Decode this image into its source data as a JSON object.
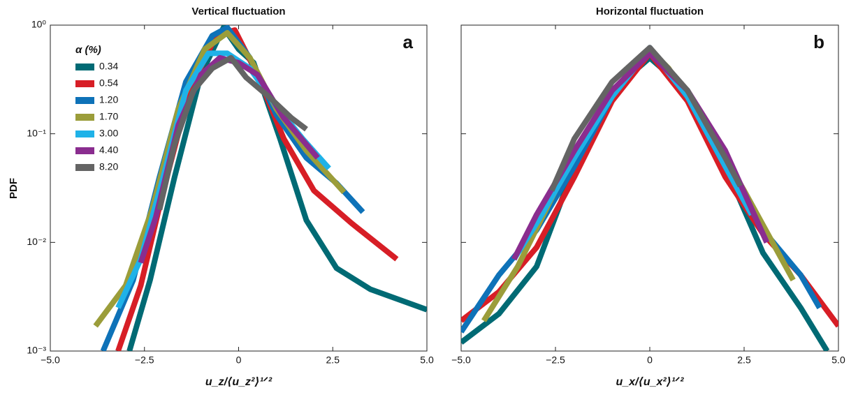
{
  "chart_data": [
    {
      "type": "line",
      "title": "Vertical fluctuation",
      "x_label": "u_z/⟨u_z²⟩¹ᐟ²",
      "y_label": "PDF",
      "annotation": "a",
      "ylog": true,
      "legend": true,
      "legend_title": "α (%)",
      "legend_position": "upper left",
      "xlim": [
        -5,
        5
      ],
      "xticks": [
        {
          "value": -5,
          "label": "−5.0"
        },
        {
          "value": -2.5,
          "label": "−2.5"
        },
        0,
        {
          "value": 2.5,
          "label": "2.5"
        },
        {
          "value": 5,
          "label": "5.0"
        }
      ],
      "ylim": [
        0.001,
        1
      ],
      "yticks": [
        {
          "value": 0.001,
          "label": "10⁻³"
        },
        {
          "value": 0.01,
          "label": "10⁻²"
        },
        {
          "value": 0.1,
          "label": "10⁻¹"
        },
        {
          "value": 1,
          "label": "10⁰"
        }
      ],
      "series": [
        {
          "name": "0.34",
          "color": "#006a74",
          "x": [
            -2.9,
            -2.35,
            -1.7,
            -1,
            -0.4,
            0,
            0.4,
            1.1,
            1.8,
            2.6,
            3.5,
            5.0
          ],
          "values": [
            0.001,
            0.0045,
            0.04,
            0.35,
            0.95,
            0.6,
            0.45,
            0.09,
            0.016,
            0.0058,
            0.0037,
            0.0024
          ]
        },
        {
          "name": "0.54",
          "color": "#d71e26",
          "x": [
            -3.2,
            -2.6,
            -2,
            -1.3,
            -0.6,
            -0.1,
            0.5,
            1.2,
            2,
            3,
            4.2
          ],
          "values": [
            0.001,
            0.004,
            0.03,
            0.25,
            0.8,
            0.9,
            0.35,
            0.09,
            0.03,
            0.015,
            0.007
          ]
        },
        {
          "name": "1.20",
          "color": "#0e72b8",
          "x": [
            -3.6,
            -2.8,
            -2.1,
            -1.4,
            -0.7,
            -0.3,
            0.3,
            1,
            1.8,
            2.6,
            3.3
          ],
          "values": [
            0.001,
            0.0045,
            0.04,
            0.3,
            0.8,
            0.95,
            0.5,
            0.15,
            0.06,
            0.035,
            0.019
          ]
        },
        {
          "name": "1.70",
          "color": "#9b9d3a",
          "x": [
            -3.8,
            -3,
            -2.3,
            -1.6,
            -0.9,
            -0.3,
            0.3,
            1,
            1.8,
            2.8
          ],
          "values": [
            0.0017,
            0.004,
            0.02,
            0.17,
            0.6,
            0.85,
            0.5,
            0.17,
            0.07,
            0.029
          ]
        },
        {
          "name": "3.00",
          "color": "#1fb2e8",
          "x": [
            -3.2,
            -2.6,
            -2,
            -1.4,
            -0.8,
            -0.3,
            0.3,
            1,
            1.7,
            2.4
          ],
          "values": [
            0.0025,
            0.007,
            0.04,
            0.25,
            0.55,
            0.55,
            0.4,
            0.18,
            0.09,
            0.048
          ]
        },
        {
          "name": "4.40",
          "color": "#8a2d8f",
          "x": [
            -2.6,
            -2.2,
            -1.6,
            -1,
            -0.5,
            0,
            0.5,
            1.2,
            2.1
          ],
          "values": [
            0.0065,
            0.017,
            0.12,
            0.35,
            0.5,
            0.45,
            0.35,
            0.14,
            0.06
          ]
        },
        {
          "name": "8.20",
          "color": "#646464",
          "x": [
            -2.1,
            -1.7,
            -1.2,
            -0.7,
            -0.2,
            0.2,
            0.8,
            1.4,
            1.8
          ],
          "values": [
            0.02,
            0.08,
            0.25,
            0.4,
            0.5,
            0.33,
            0.22,
            0.14,
            0.11
          ]
        }
      ]
    },
    {
      "type": "line",
      "title": "Horizontal fluctuation",
      "x_label": "u_x/⟨u_x²⟩¹ᐟ²",
      "annotation": "b",
      "ylog": true,
      "legend": false,
      "xlim": [
        -5,
        5
      ],
      "xticks": [
        {
          "value": -5,
          "label": "−5.0"
        },
        {
          "value": -2.5,
          "label": "−2.5"
        },
        0,
        {
          "value": 2.5,
          "label": "2.5"
        },
        {
          "value": 5,
          "label": "5.0"
        }
      ],
      "ylim": [
        0.001,
        1
      ],
      "yticks": [
        0.001,
        0.01,
        0.1,
        1
      ],
      "series": [
        {
          "color": "#006a74",
          "x": [
            -5,
            -4,
            -3,
            -2,
            -1,
            0,
            1,
            2,
            3,
            4,
            4.7
          ],
          "values": [
            0.0012,
            0.0022,
            0.006,
            0.05,
            0.25,
            0.5,
            0.25,
            0.05,
            0.008,
            0.0025,
            0.001
          ]
        },
        {
          "color": "#d71e26",
          "x": [
            -5,
            -4,
            -3,
            -2,
            -1,
            0,
            1,
            2,
            3,
            4,
            5
          ],
          "values": [
            0.0019,
            0.0035,
            0.009,
            0.04,
            0.2,
            0.55,
            0.2,
            0.04,
            0.012,
            0.005,
            0.0017
          ]
        },
        {
          "color": "#0e72b8",
          "x": [
            -5,
            -4,
            -3,
            -2,
            -1,
            0,
            1,
            2,
            3,
            4,
            4.5
          ],
          "values": [
            0.0015,
            0.005,
            0.013,
            0.05,
            0.22,
            0.62,
            0.22,
            0.05,
            0.013,
            0.005,
            0.0025
          ]
        },
        {
          "color": "#9b9d3a",
          "x": [
            -4.4,
            -3.5,
            -2.5,
            -1.5,
            -0.5,
            0,
            0.5,
            1.5,
            2.5,
            3.8
          ],
          "values": [
            0.0019,
            0.006,
            0.03,
            0.12,
            0.4,
            0.6,
            0.4,
            0.12,
            0.03,
            0.0045
          ]
        },
        {
          "color": "#1fb2e8",
          "x": [
            -3.6,
            -3,
            -2,
            -1,
            0,
            1,
            2,
            2.7
          ],
          "values": [
            0.007,
            0.015,
            0.06,
            0.22,
            0.6,
            0.22,
            0.05,
            0.018
          ]
        },
        {
          "color": "#8a2d8f",
          "x": [
            -3.6,
            -3,
            -2,
            -1,
            0,
            1,
            2,
            3.1
          ],
          "values": [
            0.007,
            0.018,
            0.07,
            0.25,
            0.55,
            0.25,
            0.07,
            0.01
          ]
        },
        {
          "color": "#646464",
          "x": [
            -2.6,
            -2,
            -1,
            0,
            1,
            2,
            2.4
          ],
          "values": [
            0.03,
            0.09,
            0.3,
            0.62,
            0.25,
            0.06,
            0.033
          ]
        }
      ]
    }
  ]
}
